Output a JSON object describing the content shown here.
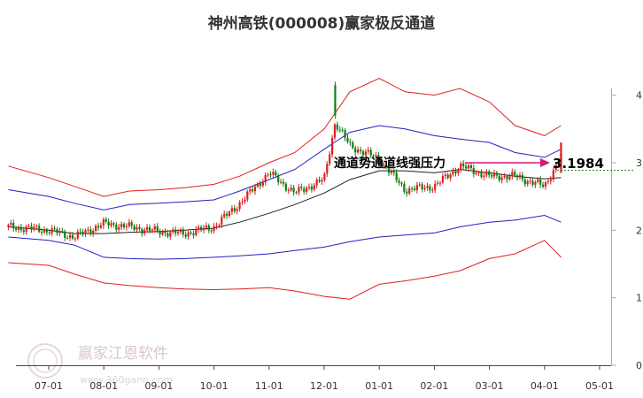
{
  "chart_data": {
    "type": "line",
    "title": "神州高铁(000008)赢家极反通道",
    "x_ticks": [
      "07-01",
      "08-01",
      "09-01",
      "10-01",
      "11-01",
      "12-01",
      "01-01",
      "02-01",
      "03-01",
      "04-01",
      "05-01"
    ],
    "y_ticks": [
      "0",
      "1",
      "2",
      "3",
      "4"
    ],
    "ylim": [
      0,
      4.1
    ],
    "grid": false,
    "annotation": {
      "text": "通道势通道线强压力",
      "value": "3.1984"
    },
    "series": [
      {
        "role": "upper_band",
        "color": "#e02020",
        "x": [
          "06-21",
          "07-01",
          "07-15",
          "08-01",
          "08-15",
          "09-01",
          "09-15",
          "10-01",
          "10-15",
          "11-01",
          "11-15",
          "12-01",
          "12-15",
          "01-01",
          "01-15",
          "02-01",
          "02-15",
          "03-01",
          "03-15",
          "04-01",
          "04-10"
        ],
        "values": [
          2.95,
          2.78,
          2.65,
          2.5,
          2.58,
          2.6,
          2.63,
          2.68,
          2.8,
          3.0,
          3.15,
          3.5,
          4.05,
          4.25,
          4.05,
          4.0,
          4.1,
          3.9,
          3.55,
          3.4,
          3.55
        ]
      },
      {
        "role": "upper_mid_band",
        "color": "#2020c0",
        "x": [
          "06-21",
          "07-01",
          "07-15",
          "08-01",
          "08-15",
          "09-01",
          "09-15",
          "10-01",
          "10-15",
          "11-01",
          "11-15",
          "12-01",
          "12-15",
          "01-01",
          "01-15",
          "02-01",
          "02-15",
          "03-01",
          "03-15",
          "04-01",
          "04-10"
        ],
        "values": [
          2.6,
          2.5,
          2.4,
          2.3,
          2.38,
          2.4,
          2.42,
          2.45,
          2.58,
          2.75,
          2.9,
          3.2,
          3.45,
          3.55,
          3.5,
          3.4,
          3.35,
          3.3,
          3.15,
          3.08,
          3.2
        ]
      },
      {
        "role": "center_line",
        "color": "#202020",
        "x": [
          "06-21",
          "07-01",
          "07-15",
          "08-01",
          "08-15",
          "09-01",
          "09-15",
          "10-01",
          "10-15",
          "11-01",
          "11-15",
          "12-01",
          "12-15",
          "01-01",
          "01-15",
          "02-01",
          "02-15",
          "03-01",
          "03-15",
          "04-01",
          "04-10"
        ],
        "values": [
          2.05,
          2.0,
          1.95,
          1.95,
          1.97,
          1.98,
          2.0,
          2.03,
          2.12,
          2.25,
          2.38,
          2.55,
          2.75,
          2.88,
          2.88,
          2.85,
          2.9,
          2.85,
          2.8,
          2.76,
          2.78
        ]
      },
      {
        "role": "lower_mid_band",
        "color": "#2020c0",
        "x": [
          "06-21",
          "07-01",
          "07-15",
          "08-01",
          "08-15",
          "09-01",
          "09-15",
          "10-01",
          "10-15",
          "11-01",
          "11-15",
          "12-01",
          "12-15",
          "01-01",
          "01-15",
          "02-01",
          "02-15",
          "03-01",
          "03-15",
          "04-01",
          "04-10"
        ],
        "values": [
          1.9,
          1.85,
          1.78,
          1.6,
          1.58,
          1.57,
          1.58,
          1.6,
          1.62,
          1.65,
          1.7,
          1.75,
          1.83,
          1.9,
          1.93,
          1.96,
          2.05,
          2.12,
          2.15,
          2.22,
          2.12
        ]
      },
      {
        "role": "lower_band",
        "color": "#e02020",
        "x": [
          "06-21",
          "07-01",
          "07-15",
          "08-01",
          "08-15",
          "09-01",
          "09-15",
          "10-01",
          "10-15",
          "11-01",
          "11-15",
          "12-01",
          "12-15",
          "01-01",
          "01-15",
          "02-01",
          "02-15",
          "03-01",
          "03-15",
          "04-01",
          "04-10"
        ],
        "values": [
          1.52,
          1.48,
          1.35,
          1.22,
          1.18,
          1.15,
          1.13,
          1.12,
          1.13,
          1.15,
          1.1,
          1.02,
          0.98,
          1.2,
          1.25,
          1.32,
          1.4,
          1.58,
          1.65,
          1.85,
          1.6
        ]
      },
      {
        "role": "price_candles",
        "up_color": "#dd2020",
        "down_color": "#108010",
        "x": [
          "06-21",
          "07-01",
          "07-15",
          "08-01",
          "08-15",
          "09-01",
          "09-15",
          "10-01",
          "10-15",
          "11-01",
          "11-15",
          "12-01",
          "12-07",
          "12-15",
          "01-01",
          "01-15",
          "02-01",
          "02-15",
          "03-01",
          "03-15",
          "04-01",
          "04-10"
        ],
        "values": [
          2.05,
          2.0,
          1.9,
          2.1,
          2.05,
          1.98,
          1.95,
          2.05,
          2.4,
          2.85,
          2.55,
          2.75,
          3.6,
          3.25,
          3.05,
          2.6,
          2.65,
          2.95,
          2.8,
          2.8,
          2.65,
          3.1
        ]
      }
    ]
  }
}
